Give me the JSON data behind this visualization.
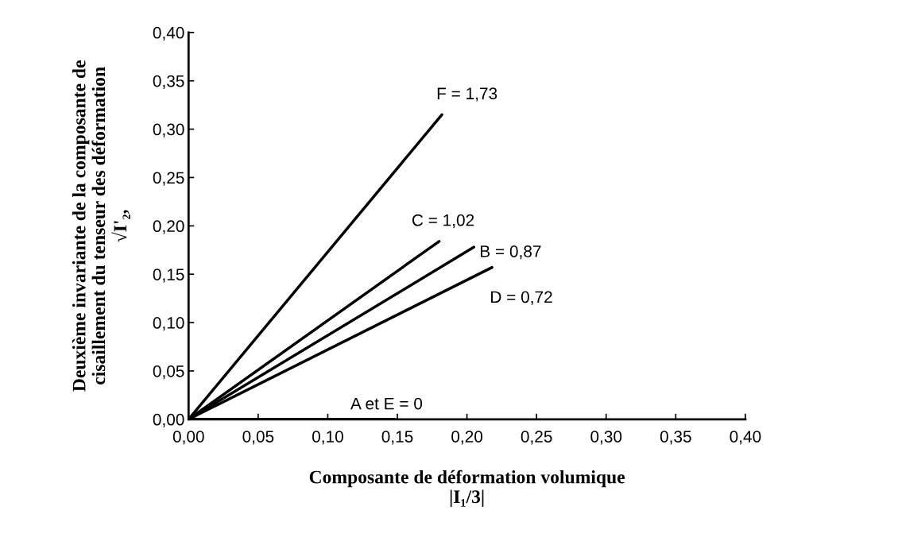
{
  "chart_data": {
    "type": "line",
    "xlabel": "Composante de déformation volumique\n|I₁/3|",
    "ylabel": "Deuxième invariante de la composante de\ncisaillement du tenseur des déformation\n√I'₂,",
    "series": [
      {
        "name": "F = 1,73",
        "color": "#000000",
        "x": [
          0,
          0.182
        ],
        "values": [
          0,
          0.315
        ]
      },
      {
        "name": "C = 1,02",
        "color": "#000000",
        "x": [
          0,
          0.18
        ],
        "values": [
          0,
          0.184
        ]
      },
      {
        "name": "B = 0,87",
        "color": "#000000",
        "x": [
          0,
          0.205
        ],
        "values": [
          0,
          0.178
        ]
      },
      {
        "name": "D = 0,72",
        "color": "#000000",
        "x": [
          0,
          0.218
        ],
        "values": [
          0,
          0.157
        ]
      },
      {
        "name": "A et E = 0",
        "color": "#000000",
        "x": [
          0,
          0.148
        ],
        "values": [
          0,
          0
        ]
      }
    ],
    "xlim": [
      0,
      0.4
    ],
    "ylim": [
      0,
      0.4
    ],
    "xticks": [
      {
        "value": 0,
        "label": "0,00"
      },
      {
        "value": 0.05,
        "label": "0,05"
      },
      {
        "value": 0.1,
        "label": "0,10"
      },
      {
        "value": 0.15,
        "label": "0,15"
      },
      {
        "value": 0.2,
        "label": "0,20"
      },
      {
        "value": 0.25,
        "label": "0,25"
      },
      {
        "value": 0.3,
        "label": "0,30"
      },
      {
        "value": 0.35,
        "label": "0,35"
      },
      {
        "value": 0.4,
        "label": "0,40"
      }
    ],
    "yticks": [
      {
        "value": 0,
        "label": "0,00"
      },
      {
        "value": 0.05,
        "label": "0,05"
      },
      {
        "value": 0.1,
        "label": "0,10"
      },
      {
        "value": 0.15,
        "label": "0,15"
      },
      {
        "value": 0.2,
        "label": "0,20"
      },
      {
        "value": 0.25,
        "label": "0,25"
      },
      {
        "value": 0.3,
        "label": "0,30"
      },
      {
        "value": 0.35,
        "label": "0,35"
      },
      {
        "value": 0.4,
        "label": "0,40"
      }
    ],
    "grid": false,
    "legend": false,
    "marker": "none",
    "line_style": "solid"
  }
}
